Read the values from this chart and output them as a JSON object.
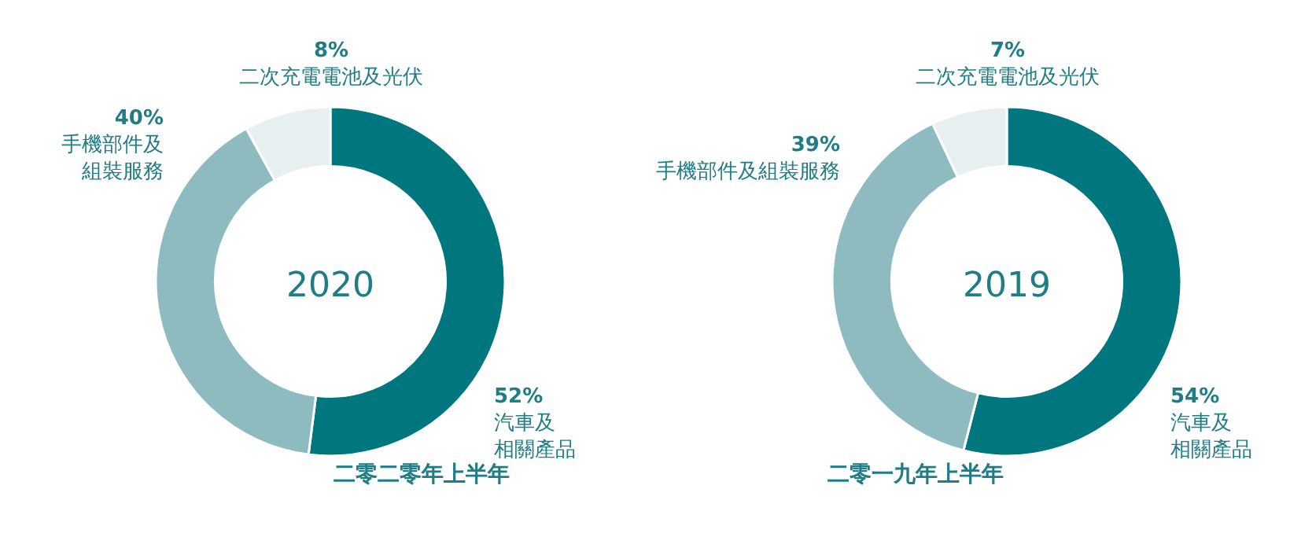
{
  "chart_data": [
    {
      "type": "donut",
      "title": "二零二零年上半年",
      "annotations": [
        "2020"
      ],
      "categories": [
        "汽車及相關產品",
        "手機部件及組裝服務",
        "二次充電電池及光伏"
      ],
      "values": [
        52,
        40,
        8
      ],
      "value_labels": [
        "52%",
        "40%",
        "8%"
      ],
      "colors": [
        "#00767f",
        "#8dbbc0",
        "#e6f0f1"
      ]
    },
    {
      "type": "donut",
      "title": "二零一九年上半年",
      "annotations": [
        "2019"
      ],
      "categories": [
        "汽車及相關產品",
        "手機部件及組裝服務",
        "二次充電電池及光伏"
      ],
      "values": [
        54,
        39,
        7
      ],
      "value_labels": [
        "54%",
        "39%",
        "7%"
      ],
      "colors": [
        "#00767f",
        "#8dbbc0",
        "#e6f0f1"
      ]
    }
  ]
}
